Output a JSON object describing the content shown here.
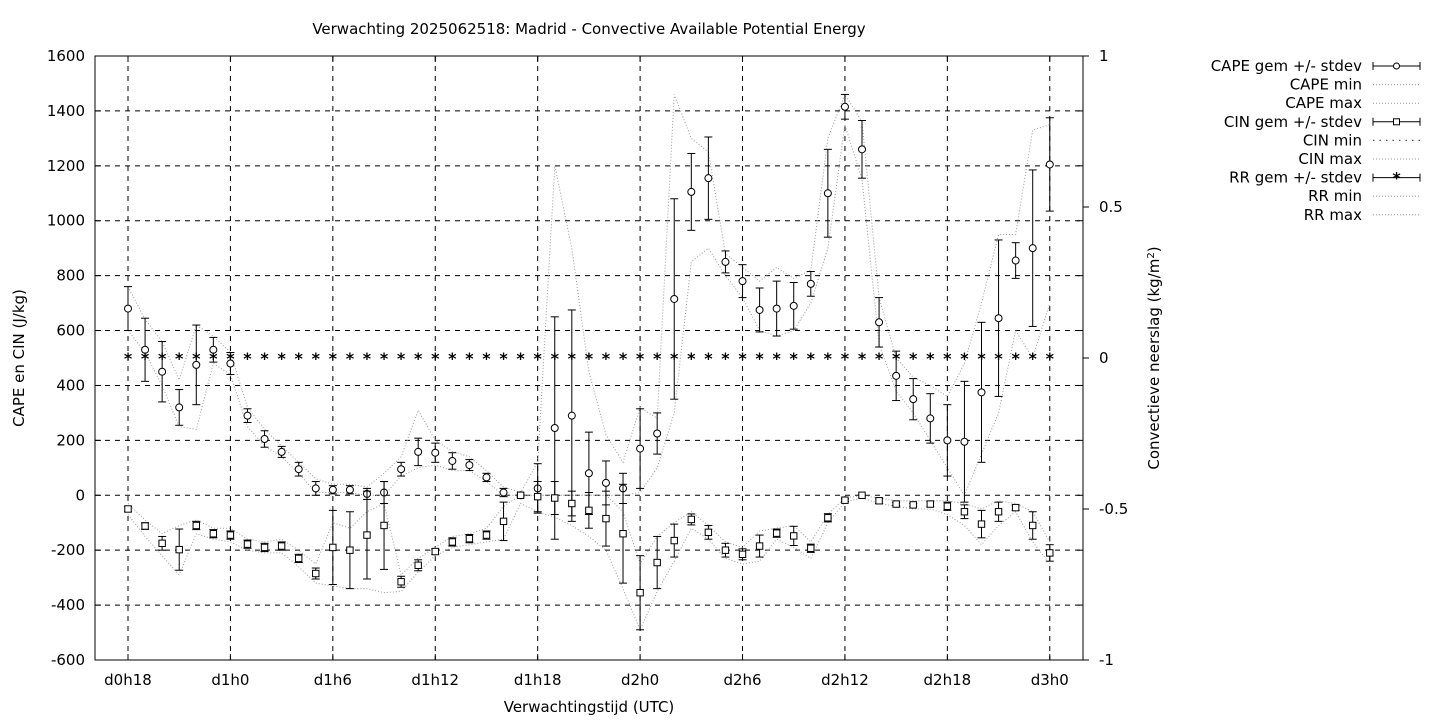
{
  "chart_data": {
    "type": "line",
    "title": "Verwachting 2025062518: Madrid - Convective Available Potential Energy",
    "xlabel": "Verwachtingstijd (UTC)",
    "ylabel": "CAPE en CIN (J/kg)",
    "y2label": "Convectieve neerslag (kg/m",
    "y2label_sup": "2",
    "y2label_end": ")",
    "ylim": [
      -600,
      1600
    ],
    "y2lim": [
      -1,
      1
    ],
    "grid": true,
    "legend_position": "outside-top-right",
    "x_start_hour": 18,
    "x_end_hour": 72,
    "x_ticks": [
      "d0h18",
      "d1h0",
      "d1h6",
      "d1h12",
      "d1h18",
      "d2h0",
      "d2h6",
      "d2h12",
      "d2h18",
      "d3h0"
    ],
    "y_ticks": [
      "-600",
      "-400",
      "-200",
      "0",
      "200",
      "400",
      "600",
      "800",
      "1000",
      "1200",
      "1400",
      "1600"
    ],
    "y2_ticks": [
      "-1",
      "-0.5",
      "0",
      "0.5",
      "1"
    ],
    "legend": [
      "CAPE gem +/- stdev",
      "CAPE min",
      "CAPE max",
      "CIN gem +/- stdev",
      "CIN min",
      "CIN max",
      "RR gem +/- stdev",
      "RR min",
      "RR max"
    ],
    "series": [
      {
        "name": "CAPE gem +/- stdev",
        "x": [
          18,
          19,
          20,
          21,
          22,
          23,
          24,
          25,
          26,
          27,
          28,
          29,
          30,
          31,
          32,
          33,
          34,
          35,
          36,
          37,
          38,
          39,
          40,
          41,
          42,
          43,
          44,
          45,
          46,
          47,
          48,
          49,
          50,
          51,
          52,
          53,
          54,
          55,
          56,
          57,
          58,
          59,
          60,
          61,
          62,
          63,
          64,
          65,
          66,
          67,
          68,
          69,
          70,
          71,
          72
        ],
        "mean": [
          680,
          530,
          450,
          320,
          475,
          530,
          480,
          290,
          205,
          158,
          95,
          25,
          20,
          20,
          5,
          10,
          95,
          158,
          155,
          125,
          110,
          65,
          10,
          0,
          25,
          245,
          290,
          80,
          45,
          25,
          170,
          225,
          715,
          1105,
          1155,
          850,
          780,
          675,
          680,
          690,
          770,
          1100,
          1415,
          1260,
          630,
          435,
          350,
          280,
          200,
          195,
          375,
          645,
          855,
          900,
          1205
        ],
        "stdev": [
          80,
          115,
          110,
          65,
          145,
          45,
          40,
          25,
          30,
          20,
          25,
          25,
          15,
          15,
          20,
          40,
          25,
          50,
          35,
          30,
          20,
          15,
          15,
          0,
          90,
          405,
          385,
          150,
          80,
          55,
          145,
          75,
          365,
          140,
          150,
          40,
          60,
          80,
          100,
          85,
          45,
          160,
          45,
          105,
          90,
          90,
          75,
          90,
          130,
          220,
          255,
          285,
          65,
          285,
          170
        ]
      },
      {
        "name": "CAPE min",
        "x": [
          18,
          19,
          20,
          21,
          22,
          23,
          24,
          25,
          26,
          27,
          28,
          29,
          30,
          31,
          32,
          33,
          34,
          35,
          36,
          37,
          38,
          39,
          40,
          41,
          42,
          43,
          44,
          45,
          46,
          47,
          48,
          49,
          50,
          51,
          52,
          53,
          54,
          55,
          56,
          57,
          58,
          59,
          60,
          61,
          62,
          63,
          64,
          65,
          66,
          67,
          68,
          69,
          70,
          71,
          72
        ],
        "values": [
          600,
          520,
          400,
          250,
          240,
          480,
          440,
          250,
          180,
          140,
          80,
          10,
          10,
          10,
          0,
          0,
          70,
          100,
          110,
          90,
          90,
          50,
          0,
          0,
          0,
          0,
          0,
          0,
          0,
          0,
          10,
          100,
          300,
          850,
          900,
          800,
          720,
          600,
          580,
          600,
          700,
          900,
          1350,
          1150,
          550,
          380,
          300,
          200,
          100,
          0,
          150,
          300,
          600,
          500,
          700
        ]
      },
      {
        "name": "CAPE max",
        "x": [
          18,
          19,
          20,
          21,
          22,
          23,
          24,
          25,
          26,
          27,
          28,
          29,
          30,
          31,
          32,
          33,
          34,
          35,
          36,
          37,
          38,
          39,
          40,
          41,
          42,
          43,
          44,
          45,
          46,
          47,
          48,
          49,
          50,
          51,
          52,
          53,
          54,
          55,
          56,
          57,
          58,
          59,
          60,
          61,
          62,
          63,
          64,
          65,
          66,
          67,
          68,
          69,
          70,
          71,
          72
        ],
        "values": [
          760,
          640,
          560,
          420,
          620,
          580,
          520,
          320,
          240,
          180,
          120,
          60,
          40,
          40,
          30,
          80,
          140,
          310,
          200,
          160,
          140,
          90,
          30,
          10,
          120,
          1200,
          900,
          450,
          220,
          120,
          320,
          280,
          1460,
          1300,
          1250,
          880,
          830,
          780,
          830,
          790,
          820,
          1300,
          1460,
          1360,
          720,
          500,
          430,
          400,
          360,
          480,
          700,
          950,
          950,
          1330,
          1350
        ]
      },
      {
        "name": "CIN gem +/- stdev",
        "x": [
          18,
          19,
          20,
          21,
          22,
          23,
          24,
          25,
          26,
          27,
          28,
          29,
          30,
          31,
          32,
          33,
          34,
          35,
          36,
          37,
          38,
          39,
          40,
          41,
          42,
          43,
          44,
          45,
          46,
          47,
          48,
          49,
          50,
          51,
          52,
          53,
          54,
          55,
          56,
          57,
          58,
          59,
          60,
          61,
          62,
          63,
          64,
          65,
          66,
          67,
          68,
          69,
          70,
          71,
          72
        ],
        "mean": [
          -50,
          -112,
          -175,
          -198,
          -110,
          -140,
          -145,
          -178,
          -190,
          -185,
          -230,
          -285,
          -190,
          -200,
          -145,
          -110,
          -315,
          -255,
          -205,
          -170,
          -158,
          -145,
          -95,
          0,
          -5,
          -10,
          -30,
          -55,
          -85,
          -140,
          -355,
          -245,
          -165,
          -88,
          -135,
          -200,
          -215,
          -185,
          -138,
          -148,
          -193,
          -82,
          -18,
          0,
          -20,
          -32,
          -35,
          -32,
          -40,
          -60,
          -105,
          -60,
          -45,
          -110,
          -210
        ],
        "stdev": [
          10,
          12,
          25,
          75,
          15,
          15,
          15,
          15,
          15,
          15,
          15,
          20,
          135,
          140,
          160,
          160,
          20,
          20,
          10,
          15,
          15,
          15,
          70,
          0,
          55,
          60,
          45,
          65,
          100,
          180,
          135,
          95,
          60,
          20,
          25,
          25,
          20,
          40,
          15,
          35,
          15,
          15,
          5,
          0,
          10,
          5,
          5,
          10,
          15,
          25,
          50,
          35,
          10,
          50,
          30
        ]
      },
      {
        "name": "CIN min",
        "x": [
          18,
          19,
          20,
          21,
          22,
          23,
          24,
          25,
          26,
          27,
          28,
          29,
          30,
          31,
          32,
          33,
          34,
          35,
          36,
          37,
          38,
          39,
          40,
          41,
          42,
          43,
          44,
          45,
          46,
          47,
          48,
          49,
          50,
          51,
          52,
          53,
          54,
          55,
          56,
          57,
          58,
          59,
          60,
          61,
          62,
          63,
          64,
          65,
          66,
          67,
          68,
          69,
          70,
          71,
          72
        ],
        "values": [
          -70,
          -150,
          -220,
          -290,
          -140,
          -160,
          -170,
          -200,
          -210,
          -210,
          -260,
          -320,
          -330,
          -340,
          -340,
          -355,
          -350,
          -280,
          -220,
          -190,
          -180,
          -170,
          -160,
          -30,
          -60,
          -80,
          -110,
          -150,
          -200,
          -340,
          -490,
          -350,
          -240,
          -120,
          -160,
          -230,
          -250,
          -240,
          -160,
          -190,
          -230,
          -100,
          -25,
          -10,
          -30,
          -40,
          -50,
          -50,
          -70,
          -110,
          -180,
          -110,
          -60,
          -170,
          -250
        ]
      },
      {
        "name": "CIN max",
        "x": [
          18,
          19,
          20,
          21,
          22,
          23,
          24,
          25,
          26,
          27,
          28,
          29,
          30,
          31,
          32,
          33,
          34,
          35,
          36,
          37,
          38,
          39,
          40,
          41,
          42,
          43,
          44,
          45,
          46,
          47,
          48,
          49,
          50,
          51,
          52,
          53,
          54,
          55,
          56,
          57,
          58,
          59,
          60,
          61,
          62,
          63,
          64,
          65,
          66,
          67,
          68,
          69,
          70,
          71,
          72
        ],
        "values": [
          -30,
          -90,
          -140,
          -110,
          -90,
          -120,
          -120,
          -160,
          -170,
          -160,
          -200,
          -250,
          -100,
          -120,
          -60,
          -30,
          -290,
          -230,
          -190,
          -150,
          -140,
          -120,
          -40,
          0,
          0,
          0,
          0,
          0,
          0,
          -60,
          -250,
          -150,
          -100,
          -60,
          -110,
          -170,
          -190,
          -130,
          -120,
          -110,
          -170,
          -70,
          -10,
          0,
          -10,
          -20,
          -20,
          -20,
          -20,
          -30,
          -50,
          -20,
          -30,
          -60,
          -170
        ]
      },
      {
        "name": "RR gem +/- stdev",
        "x": [
          18,
          19,
          20,
          21,
          22,
          23,
          24,
          25,
          26,
          27,
          28,
          29,
          30,
          31,
          32,
          33,
          34,
          35,
          36,
          37,
          38,
          39,
          40,
          41,
          42,
          43,
          44,
          45,
          46,
          47,
          48,
          49,
          50,
          51,
          52,
          53,
          54,
          55,
          56,
          57,
          58,
          59,
          60,
          61,
          62,
          63,
          64,
          65,
          66,
          67,
          68,
          69,
          70,
          71,
          72
        ],
        "mean": [
          0,
          0,
          0,
          0,
          0,
          0,
          0,
          0,
          0,
          0,
          0,
          0,
          0,
          0,
          0,
          0,
          0,
          0,
          0,
          0,
          0,
          0,
          0,
          0,
          0,
          0,
          0,
          0,
          0,
          0,
          0,
          0,
          0,
          0,
          0,
          0,
          0,
          0,
          0,
          0,
          0,
          0,
          0,
          0,
          0,
          0,
          0,
          0,
          0,
          0,
          0,
          0,
          0,
          0,
          0
        ],
        "stdev": [
          0,
          0,
          0,
          0,
          0,
          0,
          0,
          0,
          0,
          0,
          0,
          0,
          0,
          0,
          0,
          0,
          0,
          0,
          0,
          0,
          0,
          0,
          0,
          0,
          0,
          0,
          0,
          0,
          0,
          0,
          0,
          0,
          0,
          0,
          0,
          0,
          0,
          0,
          0,
          0,
          0,
          0,
          0,
          0,
          0,
          0,
          0,
          0,
          0,
          0,
          0,
          0,
          0,
          0,
          0
        ]
      },
      {
        "name": "RR min",
        "x": [
          18,
          72
        ],
        "values": [
          0,
          0
        ]
      },
      {
        "name": "RR max",
        "x": [
          18,
          72
        ],
        "values": [
          0,
          0
        ]
      }
    ]
  }
}
